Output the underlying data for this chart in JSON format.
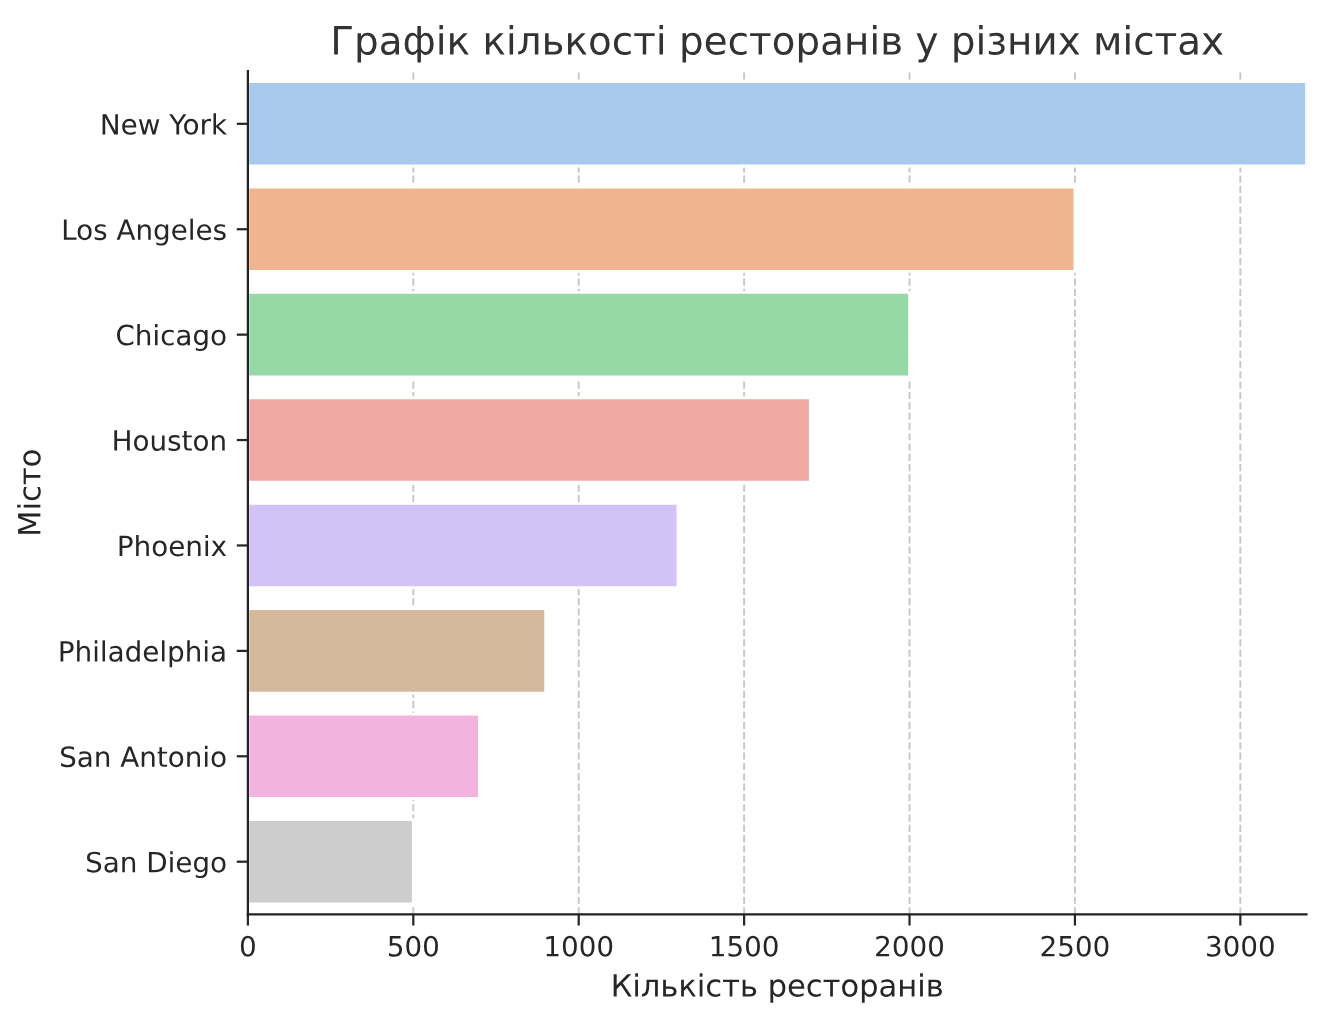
{
  "chart_data": {
    "type": "bar",
    "orientation": "horizontal",
    "title": "Графік кількості ресторанів у різних містах",
    "xlabel": "Кількість ресторанів",
    "ylabel": "Місто",
    "categories": [
      "New York",
      "Los Angeles",
      "Chicago",
      "Houston",
      "Phoenix",
      "Philadelphia",
      "San Antonio",
      "San Diego"
    ],
    "values": [
      3200,
      2500,
      2000,
      1700,
      1300,
      900,
      700,
      500
    ],
    "colors": [
      "#a8c8ec",
      "#f0b48f",
      "#95d9a6",
      "#f0a8a4",
      "#d2c2f5",
      "#d6b89a",
      "#f0b4df",
      "#cdcdcd"
    ],
    "xlim": [
      0,
      3200
    ],
    "xticks": [
      0,
      500,
      1000,
      1500,
      2000,
      2500,
      3000
    ],
    "grid": "x"
  }
}
